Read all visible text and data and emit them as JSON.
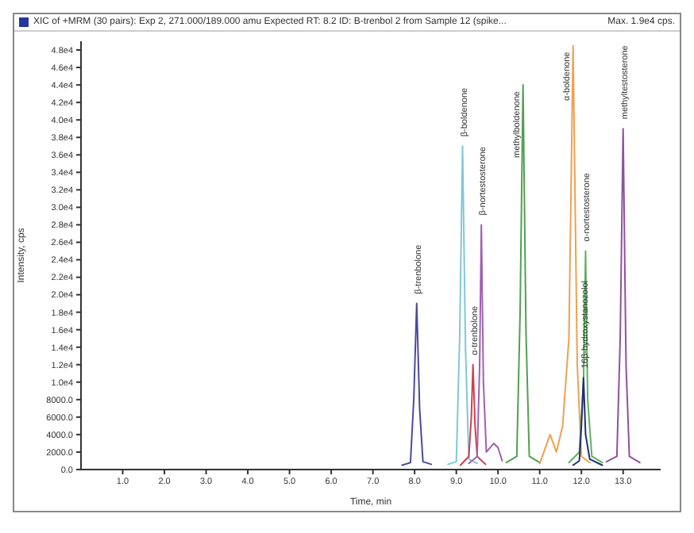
{
  "chart_data": {
    "type": "line",
    "title": "XIC of +MRM (30 pairs): Exp 2, 271.000/189.000 amu Expected RT: 8.2 ID: B-trenbol 2 from Sample 12 (spike...",
    "xlabel": "Time, min",
    "ylabel": "Intensity, cps",
    "grid": false,
    "marker": "none",
    "line_style": "solid",
    "annotations": [
      "Max. 1.9e4 cps.",
      {
        "text": "β-trenbolone",
        "x": 8.05,
        "y": 19000
      },
      {
        "text": "β-boldenone",
        "x": 9.15,
        "y": 37000
      },
      {
        "text": "α-trenbolone",
        "x": 9.4,
        "y": 12000
      },
      {
        "text": "β-nortestosterone",
        "x": 9.6,
        "y": 28000
      },
      {
        "text": "methylboldenone",
        "x": 10.6,
        "y": 44000
      },
      {
        "text": "α-boldenone",
        "x": 11.8,
        "y": 48500
      },
      {
        "text": "α-nortestosterone",
        "x": 12.1,
        "y": 25000
      },
      {
        "text": "16β-hydroxystanozolol",
        "x": 12.05,
        "y": 10500
      },
      {
        "text": "methyltestosterone",
        "x": 13.0,
        "y": 39000
      }
    ],
    "xlim": [
      0,
      13.9
    ],
    "xticks": [
      {
        "value": 1,
        "label": "1.0"
      },
      {
        "value": 2,
        "label": "2.0"
      },
      {
        "value": 3,
        "label": "3.0"
      },
      {
        "value": 4,
        "label": "4.0"
      },
      {
        "value": 5,
        "label": "5.0"
      },
      {
        "value": 6,
        "label": "6.0"
      },
      {
        "value": 7,
        "label": "7.0"
      },
      {
        "value": 8,
        "label": "8.0"
      },
      {
        "value": 9,
        "label": "9.0"
      },
      {
        "value": 10,
        "label": "10.0"
      },
      {
        "value": 11,
        "label": "11.0"
      },
      {
        "value": 12,
        "label": "12.0"
      },
      {
        "value": 13,
        "label": "13.0"
      }
    ],
    "ylim": [
      0,
      49000
    ],
    "yticks": [
      {
        "value": 0,
        "label": "0.0"
      },
      {
        "value": 2000,
        "label": "2000.0"
      },
      {
        "value": 4000,
        "label": "4000.0"
      },
      {
        "value": 6000,
        "label": "6000.0"
      },
      {
        "value": 8000,
        "label": "8000.0"
      },
      {
        "value": 10000,
        "label": "1.0e4"
      },
      {
        "value": 12000,
        "label": "1.2e4"
      },
      {
        "value": 14000,
        "label": "1.4e4"
      },
      {
        "value": 16000,
        "label": "1.6e4"
      },
      {
        "value": 18000,
        "label": "1.8e4"
      },
      {
        "value": 20000,
        "label": "2.0e4"
      },
      {
        "value": 22000,
        "label": "2.2e4"
      },
      {
        "value": 24000,
        "label": "2.4e4"
      },
      {
        "value": 26000,
        "label": "2.6e4"
      },
      {
        "value": 28000,
        "label": "2.8e4"
      },
      {
        "value": 30000,
        "label": "3.0e4"
      },
      {
        "value": 32000,
        "label": "3.2e4"
      },
      {
        "value": 34000,
        "label": "3.4e4"
      },
      {
        "value": 36000,
        "label": "3.6e4"
      },
      {
        "value": 38000,
        "label": "3.8e4"
      },
      {
        "value": 40000,
        "label": "4.0e4"
      },
      {
        "value": 42000,
        "label": "4.2e4"
      },
      {
        "value": 44000,
        "label": "4.4e4"
      },
      {
        "value": 46000,
        "label": "4.6e4"
      },
      {
        "value": 48000,
        "label": "4.8e4"
      }
    ],
    "series": [
      {
        "color": "#4a4aa0",
        "x": [
          7.7,
          7.9,
          7.98,
          8.05,
          8.12,
          8.2,
          8.4
        ],
        "values": [
          500,
          800,
          8000,
          19000,
          7000,
          900,
          600
        ]
      },
      {
        "color": "#7ec8d8",
        "x": [
          8.8,
          9.0,
          9.08,
          9.15,
          9.22,
          9.3,
          9.5
        ],
        "values": [
          600,
          900,
          15000,
          37000,
          14000,
          1200,
          700
        ]
      },
      {
        "color": "#d04050",
        "x": [
          9.1,
          9.3,
          9.36,
          9.4,
          9.45,
          9.5,
          9.7
        ],
        "values": [
          500,
          1500,
          6000,
          12000,
          5000,
          1500,
          600
        ]
      },
      {
        "color": "#a060b0",
        "x": [
          9.3,
          9.5,
          9.56,
          9.6,
          9.65,
          9.72,
          9.9,
          10.0,
          10.1
        ],
        "values": [
          700,
          1500,
          12000,
          28000,
          10000,
          2000,
          3000,
          2500,
          1000
        ]
      },
      {
        "color": "#50a050",
        "x": [
          10.2,
          10.45,
          10.53,
          10.6,
          10.67,
          10.75,
          11.0
        ],
        "values": [
          800,
          1500,
          18000,
          44000,
          16000,
          1500,
          800
        ]
      },
      {
        "color": "#f0a050",
        "x": [
          11.0,
          11.25,
          11.4,
          11.55,
          11.7,
          11.8,
          11.9,
          12.0,
          12.2
        ],
        "values": [
          700,
          4000,
          2000,
          5000,
          15000,
          48500,
          12000,
          1500,
          800
        ]
      },
      {
        "color": "#60b060",
        "x": [
          11.7,
          11.95,
          12.05,
          12.1,
          12.15,
          12.25,
          12.5
        ],
        "values": [
          800,
          2000,
          10000,
          25000,
          8000,
          1500,
          800
        ]
      },
      {
        "color": "#203070",
        "x": [
          11.8,
          11.95,
          12.0,
          12.05,
          12.1,
          12.2,
          12.5
        ],
        "values": [
          500,
          1000,
          5000,
          10500,
          4000,
          1200,
          500
        ]
      },
      {
        "color": "#9050a0",
        "x": [
          12.6,
          12.85,
          12.93,
          13.0,
          13.07,
          13.15,
          13.4
        ],
        "values": [
          900,
          1500,
          15000,
          39000,
          12000,
          1500,
          800
        ]
      }
    ]
  }
}
